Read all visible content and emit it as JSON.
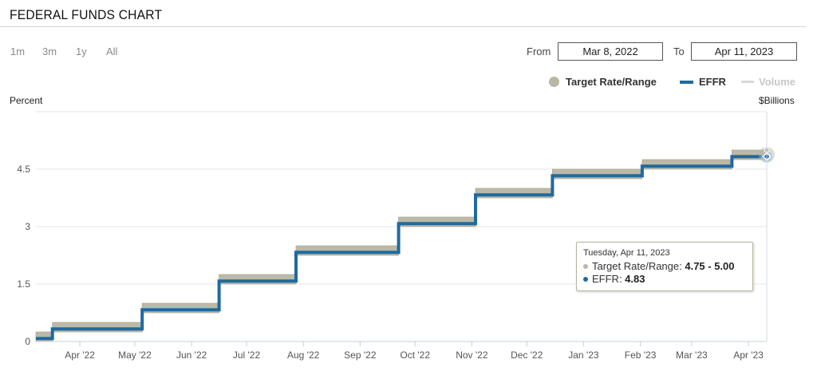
{
  "header": {
    "title": "FEDERAL FUNDS CHART"
  },
  "range_buttons": [
    "1m",
    "3m",
    "1y",
    "All"
  ],
  "date_range": {
    "from_label": "From",
    "from_value": "Mar 8, 2022",
    "to_label": "To",
    "to_value": "Apr 11, 2023"
  },
  "legend": {
    "target": "Target Rate/Range",
    "effr": "EFFR",
    "volume": "Volume"
  },
  "colors": {
    "target": "#b9b6a3",
    "effr": "#1f6aa0",
    "volume": "#d8d8d8",
    "grid": "#e3e6ee"
  },
  "tooltip": {
    "date": "Tuesday, Apr 11, 2023",
    "target_label": "Target Rate/Range: ",
    "target_value": "4.75 - 5.00",
    "effr_label": "EFFR: ",
    "effr_value": "4.83"
  },
  "chart_data": {
    "type": "line",
    "ylabel": "Percent",
    "y2label": "$Billions",
    "ylim": [
      0,
      6
    ],
    "yticks": [
      0,
      1.5,
      3,
      4.5
    ],
    "ytick_labels": [
      "0",
      "1.5",
      "3",
      "4.5"
    ],
    "xlim": [
      "2022-03-08",
      "2023-04-11"
    ],
    "xticks": [
      "2022-04-01",
      "2022-05-01",
      "2022-06-01",
      "2022-07-01",
      "2022-08-01",
      "2022-09-01",
      "2022-10-01",
      "2022-11-01",
      "2022-12-01",
      "2023-01-01",
      "2023-02-01",
      "2023-03-01",
      "2023-04-01"
    ],
    "xtick_labels": [
      "Apr '22",
      "May '22",
      "Jun '22",
      "Jul '22",
      "Aug '22",
      "Sep '22",
      "Oct '22",
      "Nov '22",
      "Dec '22",
      "Jan '23",
      "Feb '23",
      "Mar '23",
      "Apr '23"
    ],
    "grid": true,
    "legend_position": "top-right",
    "series": [
      {
        "name": "Target Rate/Range",
        "kind": "range",
        "points": [
          {
            "x": "2022-03-08",
            "low": 0.0,
            "high": 0.25
          },
          {
            "x": "2022-03-17",
            "low": 0.25,
            "high": 0.5
          },
          {
            "x": "2022-05-05",
            "low": 0.75,
            "high": 1.0
          },
          {
            "x": "2022-06-16",
            "low": 1.5,
            "high": 1.75
          },
          {
            "x": "2022-07-28",
            "low": 2.25,
            "high": 2.5
          },
          {
            "x": "2022-09-22",
            "low": 3.0,
            "high": 3.25
          },
          {
            "x": "2022-11-03",
            "low": 3.75,
            "high": 4.0
          },
          {
            "x": "2022-12-15",
            "low": 4.25,
            "high": 4.5
          },
          {
            "x": "2023-02-02",
            "low": 4.5,
            "high": 4.75
          },
          {
            "x": "2023-03-23",
            "low": 4.75,
            "high": 5.0
          },
          {
            "x": "2023-04-11",
            "low": 4.75,
            "high": 5.0
          }
        ]
      },
      {
        "name": "EFFR",
        "kind": "step",
        "points": [
          {
            "x": "2022-03-08",
            "y": 0.08
          },
          {
            "x": "2022-03-17",
            "y": 0.33
          },
          {
            "x": "2022-05-05",
            "y": 0.83
          },
          {
            "x": "2022-06-16",
            "y": 1.58
          },
          {
            "x": "2022-07-28",
            "y": 2.33
          },
          {
            "x": "2022-09-22",
            "y": 3.08
          },
          {
            "x": "2022-11-03",
            "y": 3.83
          },
          {
            "x": "2022-12-15",
            "y": 4.33
          },
          {
            "x": "2023-02-02",
            "y": 4.58
          },
          {
            "x": "2023-03-23",
            "y": 4.83
          },
          {
            "x": "2023-04-11",
            "y": 4.83
          }
        ]
      },
      {
        "name": "Volume",
        "kind": "hidden",
        "points": []
      }
    ]
  }
}
